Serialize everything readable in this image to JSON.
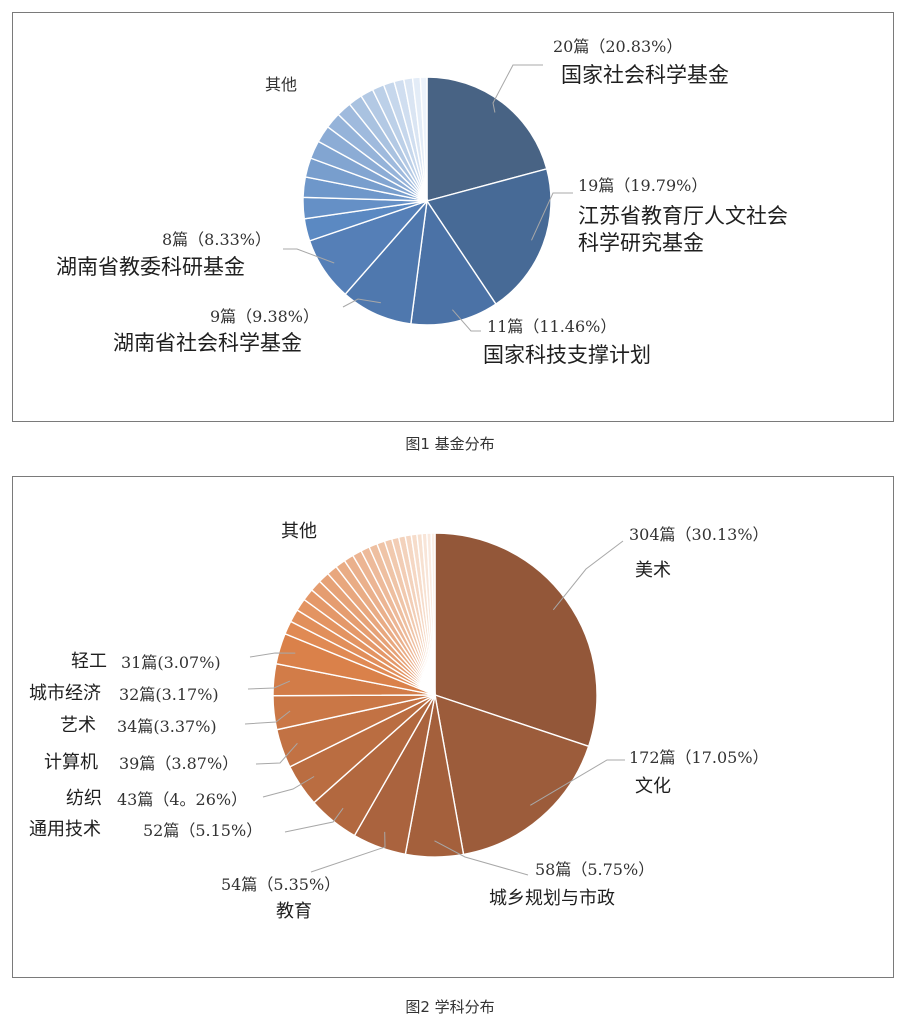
{
  "chart_data": [
    {
      "type": "pie",
      "caption": "图1 基金分布",
      "slices": [
        {
          "name": "国家社会科学基金",
          "count_label": "20篇（20.83%）",
          "value": 20.83,
          "color": "#486384"
        },
        {
          "name": "江苏省教育厅人文社会科学研究基金",
          "count_label": "19篇（19.79%）",
          "value": 19.79,
          "color": "#476a96"
        },
        {
          "name": "国家科技支撑计划",
          "count_label": "11篇（11.46%）",
          "value": 11.46,
          "color": "#4b72a6"
        },
        {
          "name": "湖南省社会科学基金",
          "count_label": "9篇（9.38%）",
          "value": 9.38,
          "color": "#4f78ae"
        },
        {
          "name": "湖南省教委科研基金",
          "count_label": "8篇（8.33%）",
          "value": 8.33,
          "color": "#557fb7"
        }
      ],
      "other_label": "其他",
      "other_value": 30.21,
      "other_gradient": [
        "#5b89c2",
        "#edf3fb"
      ]
    },
    {
      "type": "pie",
      "caption": "图2 学科分布",
      "slices": [
        {
          "name": "美术",
          "count_label": "304篇（30.13%）",
          "value": 30.13,
          "color": "#935739"
        },
        {
          "name": "文化",
          "count_label": "172篇（17.05%）",
          "value": 17.05,
          "color": "#9c5c3b"
        },
        {
          "name": "城乡规划与市政",
          "count_label": "58篇（5.75%）",
          "value": 5.75,
          "color": "#a4603c"
        },
        {
          "name": "教育",
          "count_label": "54篇（5.35%）",
          "value": 5.35,
          "color": "#aa633e"
        },
        {
          "name": "通用技术",
          "count_label": "52篇（5.15%）",
          "value": 5.15,
          "color": "#b2683f"
        },
        {
          "name": "纺织",
          "count_label": "43篇（4。26%）",
          "value": 4.26,
          "color": "#ba6d41"
        },
        {
          "name": "计算机",
          "count_label": "39篇（3.87%）",
          "value": 3.87,
          "color": "#c27244"
        },
        {
          "name": "艺术",
          "count_label": "34篇(3.37%)",
          "value": 3.37,
          "color": "#ca7746"
        },
        {
          "name": "城市经济",
          "count_label": "32篇(3.17%)",
          "value": 3.17,
          "color": "#d27c48"
        },
        {
          "name": "轻工",
          "count_label": "31篇(3.07%)",
          "value": 3.07,
          "color": "#da814a"
        }
      ],
      "other_label": "其他",
      "other_value": 18.83,
      "other_gradient": [
        "#e08a54",
        "#fbefe6"
      ]
    }
  ]
}
